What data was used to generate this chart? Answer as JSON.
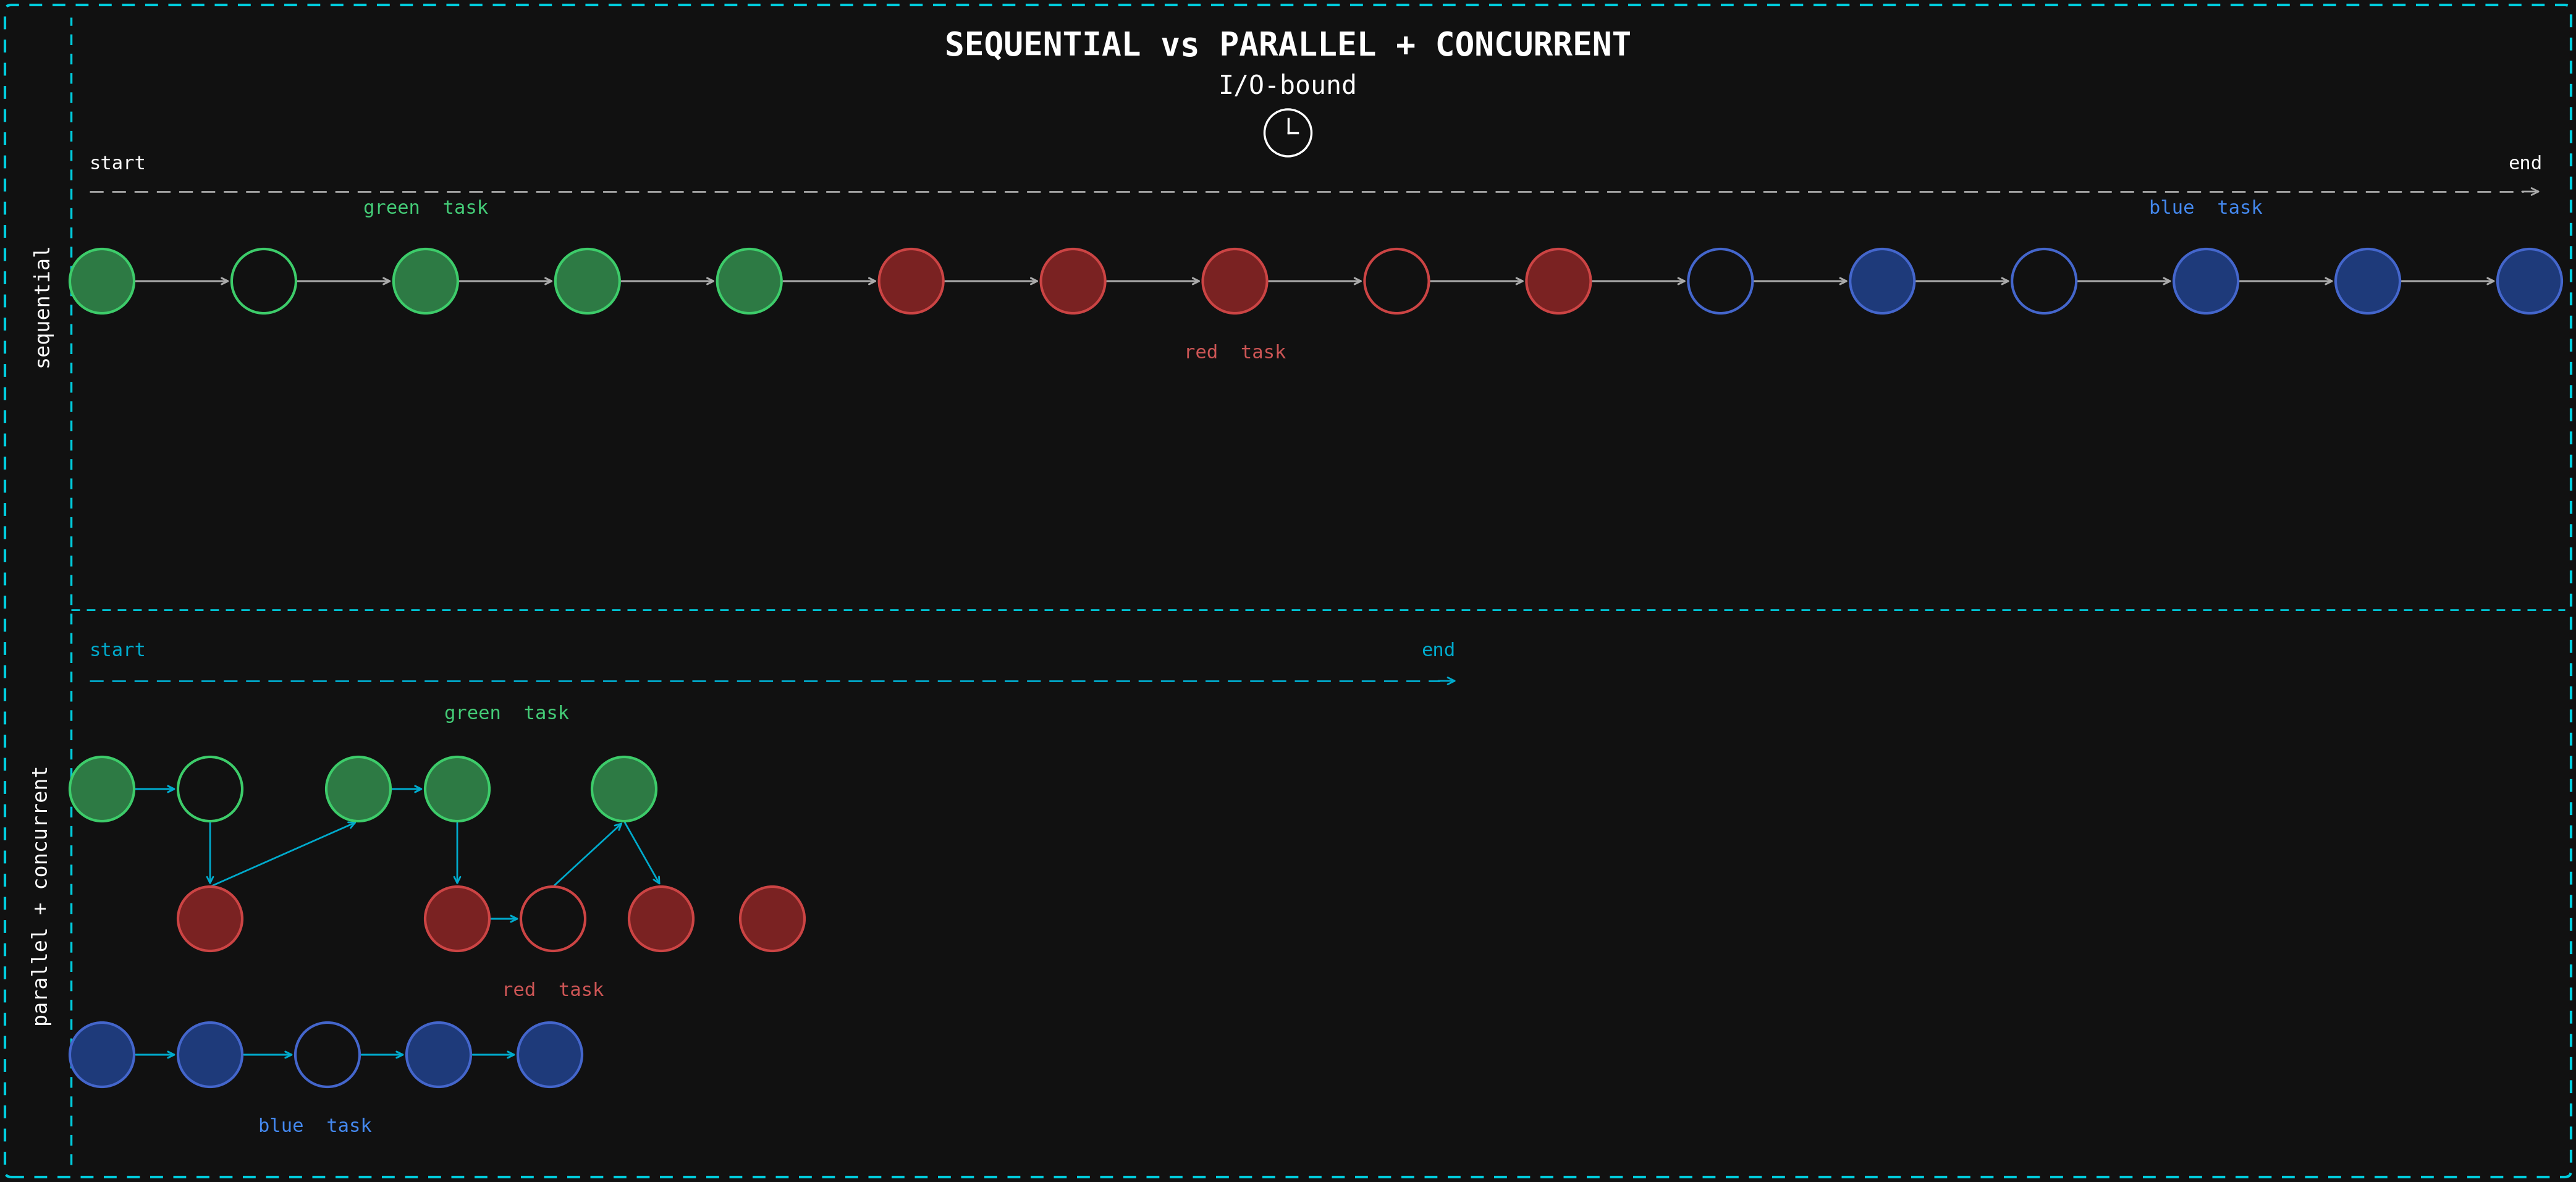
{
  "bg_color": "#111111",
  "border_color": "#00ccdd",
  "title_line1": "SEQUENTIAL vs PARALLEL + CONCURRENT",
  "title_line2": "I/O-bound",
  "title_color": "#ffffff",
  "font_family": "monospace",
  "seq_label": "sequential",
  "par_label": "parallel + concurrent",
  "seq_timeline_color": "#aaaaaa",
  "par_timeline_color": "#00aacc",
  "green_fill": "#2d7a44",
  "green_edge": "#3dcc6a",
  "green_label_color": "#44cc77",
  "red_fill": "#7a2222",
  "red_edge": "#cc4444",
  "red_label_color": "#cc5555",
  "blue_fill": "#1e3a7a",
  "blue_edge": "#4466cc",
  "blue_label_color": "#4488ee",
  "arrow_color_seq": "#aaaaaa",
  "arrow_color_par": "#00aacc",
  "fig_w": 4169,
  "fig_h": 1913,
  "seq_circles": [
    {
      "filled": true,
      "color": "green"
    },
    {
      "filled": false,
      "color": "green"
    },
    {
      "filled": true,
      "color": "green"
    },
    {
      "filled": true,
      "color": "green"
    },
    {
      "filled": true,
      "color": "green"
    },
    {
      "filled": true,
      "color": "red"
    },
    {
      "filled": true,
      "color": "red"
    },
    {
      "filled": true,
      "color": "red"
    },
    {
      "filled": false,
      "color": "red"
    },
    {
      "filled": true,
      "color": "red"
    },
    {
      "filled": false,
      "color": "blue"
    },
    {
      "filled": true,
      "color": "blue"
    },
    {
      "filled": false,
      "color": "blue"
    },
    {
      "filled": true,
      "color": "blue"
    },
    {
      "filled": true,
      "color": "blue"
    },
    {
      "filled": true,
      "color": "blue"
    }
  ],
  "par_green_filled": [
    true,
    false,
    true,
    true,
    true
  ],
  "par_red_filled": [
    true,
    true,
    false,
    true,
    true
  ],
  "par_blue_filled": [
    true,
    true,
    false,
    true,
    true
  ],
  "clock_symbol": "⧖"
}
